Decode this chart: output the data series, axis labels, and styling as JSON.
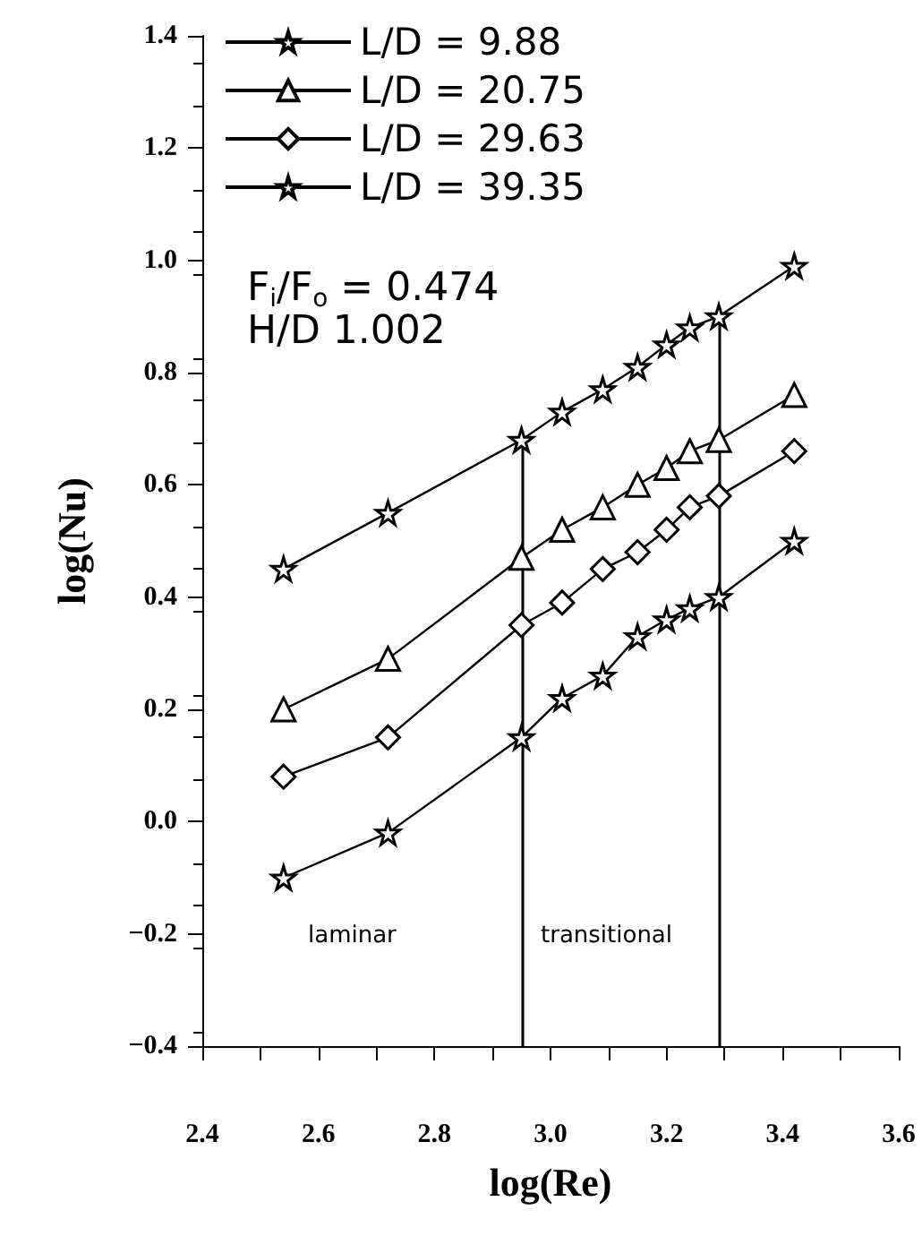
{
  "chart_data": {
    "type": "line",
    "xlabel": "log(Re)",
    "ylabel": "log(Nu)",
    "x": [
      2.54,
      2.72,
      2.95,
      3.02,
      3.09,
      3.15,
      3.2,
      3.24,
      3.29,
      3.42
    ],
    "xlim": [
      2.4,
      3.6
    ],
    "xticks": [
      2.4,
      2.6,
      2.8,
      {
        "value": 3,
        "label": "3.0"
      },
      3.2,
      3.4,
      3.6
    ],
    "ylim": [
      -0.4,
      1.4
    ],
    "yticks": [
      -0.4,
      -0.2,
      {
        "value": 0,
        "label": "0.0"
      },
      0.2,
      0.4,
      0.6,
      0.8,
      {
        "value": 1,
        "label": "1.0"
      },
      1.2,
      1.4
    ],
    "series": [
      {
        "name": "L/D = 9.88",
        "color": "#000000",
        "marker": "star",
        "values": [
          0.45,
          0.55,
          0.68,
          0.73,
          0.77,
          0.81,
          0.85,
          0.88,
          0.9,
          0.99
        ]
      },
      {
        "name": "L/D = 20.75",
        "color": "#000000",
        "marker": "triangle",
        "values": [
          0.2,
          0.29,
          0.47,
          0.52,
          0.56,
          0.6,
          0.63,
          0.66,
          0.68,
          0.76
        ]
      },
      {
        "name": "L/D = 29.63",
        "color": "#000000",
        "marker": "diamond",
        "values": [
          0.08,
          0.15,
          0.35,
          0.39,
          0.45,
          0.48,
          0.52,
          0.56,
          0.58,
          0.66
        ]
      },
      {
        "name": "L/D = 39.35",
        "color": "#000000",
        "marker": "star",
        "values": [
          -0.1,
          -0.02,
          0.15,
          0.22,
          0.26,
          0.33,
          0.36,
          0.38,
          0.4,
          0.5
        ]
      }
    ],
    "ref_lines": [
      {
        "axis": "x",
        "value": 2.95,
        "color": "#000000"
      },
      {
        "axis": "x",
        "value": 3.29,
        "color": "#000000"
      }
    ],
    "annotations": [
      "F$_{i}$/F$_{o}$ = 0.474",
      "H/D 1.002",
      "laminar",
      "transitional"
    ],
    "legend": "top left",
    "grid": false,
    "line_style": "solid"
  }
}
